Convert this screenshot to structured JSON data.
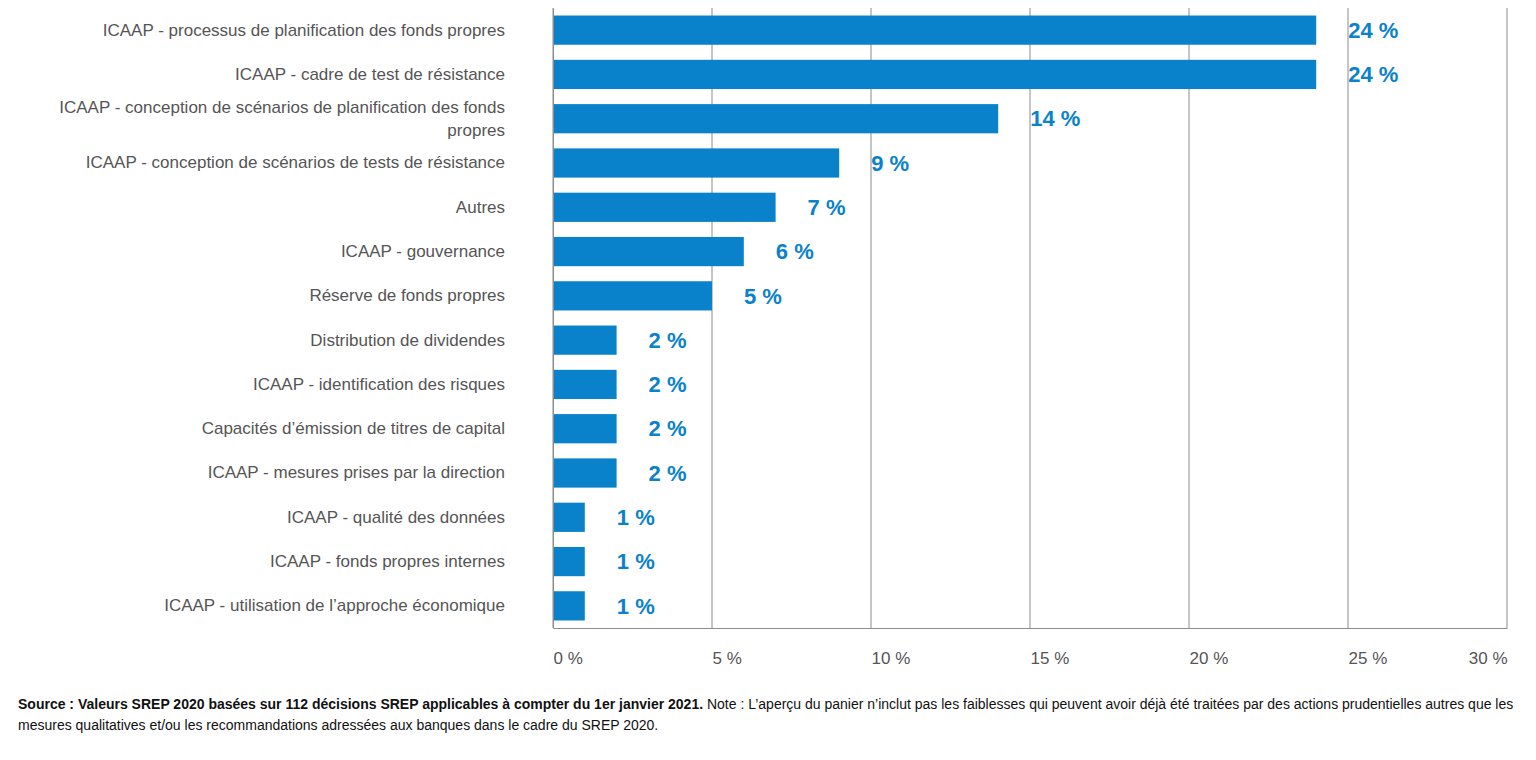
{
  "chart_data": {
    "type": "bar",
    "orientation": "horizontal",
    "categories": [
      "ICAAP - processus de planification des fonds propres",
      "ICAAP - cadre de test de résistance",
      "ICAAP - conception de scénarios de planification des fonds propres",
      "ICAAP - conception de scénarios de tests de résistance",
      "Autres",
      "ICAAP - gouvernance",
      "Réserve de fonds propres",
      "Distribution de dividendes",
      "ICAAP - identification des risques",
      "Capacités d’émission de titres de capital",
      "ICAAP - mesures prises par la direction",
      "ICAAP - qualité des données",
      "ICAAP - fonds propres internes",
      "ICAAP - utilisation de l’approche économique"
    ],
    "values": [
      24,
      24,
      14,
      9,
      7,
      6,
      5,
      2,
      2,
      2,
      2,
      1,
      1,
      1
    ],
    "value_labels": [
      "24 %",
      "24 %",
      "14 %",
      "9 %",
      "7 %",
      "6 %",
      "5 %",
      "2 %",
      "2 %",
      "2 %",
      "2 %",
      "1 %",
      "1 %",
      "1 %"
    ],
    "color": "#0a82cb",
    "xlim": [
      0,
      30
    ],
    "xticks": [
      {
        "value": 0,
        "label": "0 %"
      },
      {
        "value": 5,
        "label": "5 %"
      },
      {
        "value": 10,
        "label": "10 %"
      },
      {
        "value": 15,
        "label": "15 %"
      },
      {
        "value": 20,
        "label": "20 %"
      },
      {
        "value": 25,
        "label": "25 %"
      },
      {
        "value": 30,
        "label": "30 %"
      }
    ],
    "grid": true,
    "data_labels": true,
    "source": "Source : Valeurs SREP 2020 basées sur 112 décisions SREP applicables à compter du 1er janvier 2021.",
    "note": "Note : L’aperçu du panier n’inclut pas les faiblesses qui peuvent avoir déjà été traitées par des actions prudentielles autres que les mesures qualitatives et/ou les recommandations adressées aux banques dans le cadre du SREP 2020."
  }
}
